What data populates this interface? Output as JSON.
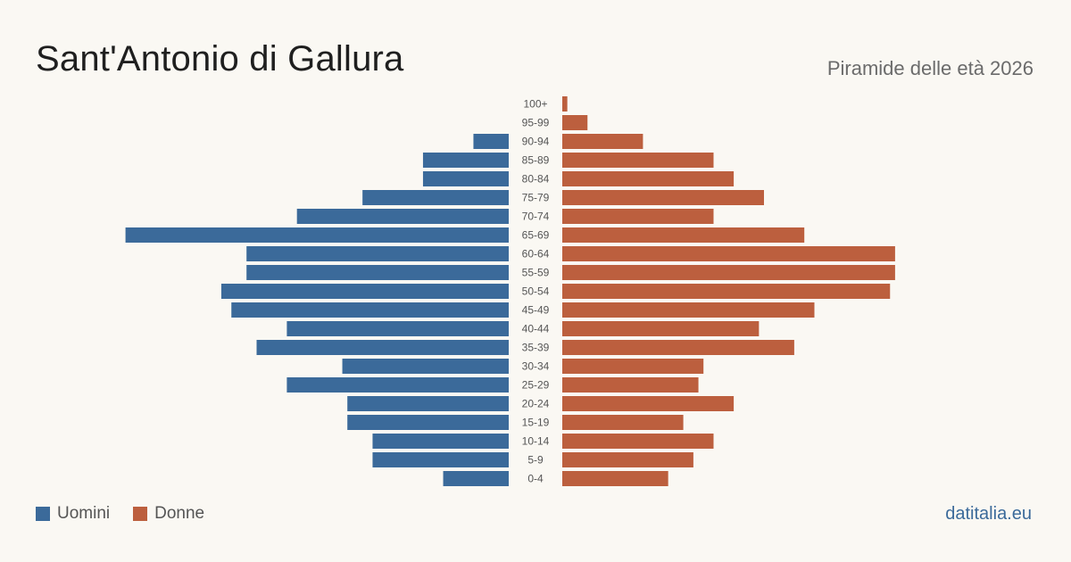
{
  "header": {
    "title": "Sant'Antonio di Gallura",
    "subtitle": "Piramide delle età 2026"
  },
  "footer": {
    "brand": "datitalia.eu"
  },
  "colors": {
    "male": "#3b6a9a",
    "female": "#bc5f3e"
  },
  "chart_data": {
    "type": "bar",
    "orientation": "horizontal-pyramid",
    "categories": [
      "100+",
      "95-99",
      "90-94",
      "85-89",
      "80-84",
      "75-79",
      "70-74",
      "65-69",
      "60-64",
      "55-59",
      "50-54",
      "45-49",
      "40-44",
      "35-39",
      "30-34",
      "25-29",
      "20-24",
      "15-19",
      "10-14",
      "5-9",
      "0-4"
    ],
    "series": [
      {
        "name": "Uomini",
        "values": [
          0,
          0,
          7,
          17,
          17,
          29,
          42,
          76,
          52,
          52,
          57,
          55,
          44,
          50,
          33,
          44,
          32,
          32,
          27,
          27,
          13
        ]
      },
      {
        "name": "Donne",
        "values": [
          1,
          5,
          16,
          30,
          34,
          40,
          30,
          48,
          66,
          66,
          65,
          50,
          39,
          46,
          28,
          27,
          34,
          24,
          30,
          26,
          21
        ]
      }
    ],
    "legend": "bottom-left"
  }
}
